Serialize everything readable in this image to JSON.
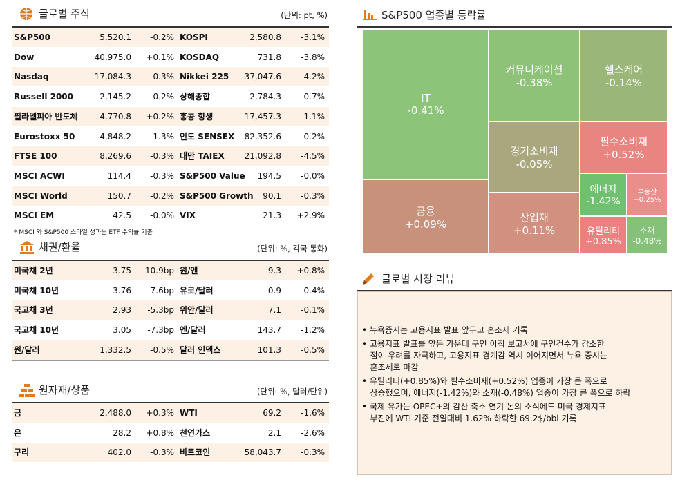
{
  "global_stocks": {
    "title": "글로벌 주식",
    "unit": "(단위: pt, %)",
    "rows": [
      [
        "S&P500",
        "5,520.1",
        "-0.2%",
        "KOSPI",
        "2,580.8",
        "-3.1%"
      ],
      [
        "Dow",
        "40,975.0",
        "+0.1%",
        "KOSDAQ",
        "731.8",
        "-3.8%"
      ],
      [
        "Nasdaq",
        "17,084.3",
        "-0.3%",
        "Nikkei 225",
        "37,047.6",
        "-4.2%"
      ],
      [
        "Russell 2000",
        "2,145.2",
        "-0.2%",
        "상해종합",
        "2,784.3",
        "-0.7%"
      ],
      [
        "필라델피아 반도체",
        "4,770.8",
        "+0.2%",
        "홍콩 항생",
        "17,457.3",
        "-1.1%"
      ],
      [
        "Eurostoxx 50",
        "4,848.2",
        "-1.3%",
        "인도 SENSEX",
        "82,352.6",
        "-0.2%"
      ],
      [
        "FTSE 100",
        "8,269.6",
        "-0.3%",
        "대만 TAIEX",
        "21,092.8",
        "-4.5%"
      ],
      [
        "MSCI ACWI",
        "114.4",
        "-0.3%",
        "S&P500 Value",
        "194.5",
        "-0.0%"
      ],
      [
        "MSCI World",
        "150.7",
        "-0.2%",
        "S&P500 Growth",
        "90.1",
        "-0.3%"
      ],
      [
        "MSCI EM",
        "42.5",
        "-0.0%",
        "VIX",
        "21.3",
        "+2.9%"
      ]
    ],
    "note": "* MSCI 와 S&P500 스타일 성과는 ETF 수익률 기준"
  },
  "bonds_fx": {
    "title": "채권/환율",
    "unit": "(단위: %, 각국 통화)",
    "rows": [
      [
        "미국채 2년",
        "3.75",
        "-10.9bp",
        "원/엔",
        "9.3",
        "+0.8%"
      ],
      [
        "미국채 10년",
        "3.76",
        "-7.6bp",
        "유로/달러",
        "0.9",
        "-0.4%"
      ],
      [
        "국고채 3년",
        "2.93",
        "-5.3bp",
        "위안/달러",
        "7.1",
        "-0.1%"
      ],
      [
        "국고채 10년",
        "3.05",
        "-7.3bp",
        "엔/달러",
        "143.7",
        "-1.2%"
      ],
      [
        "원/달러",
        "1,332.5",
        "-0.5%",
        "달러 인덱스",
        "101.3",
        "-0.5%"
      ]
    ]
  },
  "commodities": {
    "title": "원자재/상품",
    "unit": "(단위: %, 달러/단위)",
    "rows": [
      [
        "금",
        "2,488.0",
        "+0.3%",
        "WTI",
        "69.2",
        "-1.6%"
      ],
      [
        "은",
        "28.2",
        "+0.8%",
        "천연가스",
        "2.1",
        "-2.6%"
      ],
      [
        "구리",
        "402.0",
        "-0.3%",
        "비트코인",
        "58,043.7",
        "-0.3%"
      ]
    ]
  },
  "sector_map": {
    "title": "S&P500 업종별 등락률",
    "tiles": [
      {
        "name": "IT",
        "value": "-0.41%",
        "color": "#8cc47a"
      },
      {
        "name": "금융",
        "value": "+0.09%",
        "color": "#c8917c"
      },
      {
        "name": "커뮤니케이션",
        "value": "-0.38%",
        "color": "#8dc278"
      },
      {
        "name": "헬스케어",
        "value": "-0.14%",
        "color": "#9bb679"
      },
      {
        "name": "경기소비재",
        "value": "-0.05%",
        "color": "#aaa77e"
      },
      {
        "name": "필수소비재",
        "value": "+0.52%",
        "color": "#e88581"
      },
      {
        "name": "산업재",
        "value": "+0.11%",
        "color": "#d29180"
      },
      {
        "name": "에너지",
        "value": "-1.42%",
        "color": "#6fc06f"
      },
      {
        "name": "부동산",
        "value": "+0.25%",
        "color": "#e98e8a"
      },
      {
        "name": "유틸리티",
        "value": "+0.85%",
        "color": "#ea8080"
      },
      {
        "name": "소재",
        "value": "-0.48%",
        "color": "#86c17a"
      }
    ]
  },
  "review": {
    "title": "글로벌 시장 리뷰",
    "bullets": [
      [
        "• 뉴욕증시는 고용지표 발표 앞두고 혼조세 기록"
      ],
      [
        "• 고용지표 발표를 앞둔 가운데 구인 이직 보고서에 구인건수가 감소한",
        "   점이 우려를 자극하고, 고용지표 경계감 역시 이어지면서 뉴욕 증시는",
        "   혼조세로 마감"
      ],
      [
        "• 유틸리티(+0.85%)와 필수소비재(+0.52%) 업종이 가장 큰 폭으로",
        "   상승했으며, 에너지(-1.42%)와 소재(-0.48%) 업종이 가장 큰 폭으로 하락"
      ],
      [
        "• 국제 유가는 OPEC+의 감산 축소 연기 논의 소식에도 미국 경제지표",
        "   부진에 WTI 기준 전일대비 1.62% 하락한 69.2$/bbl 기록"
      ]
    ]
  }
}
